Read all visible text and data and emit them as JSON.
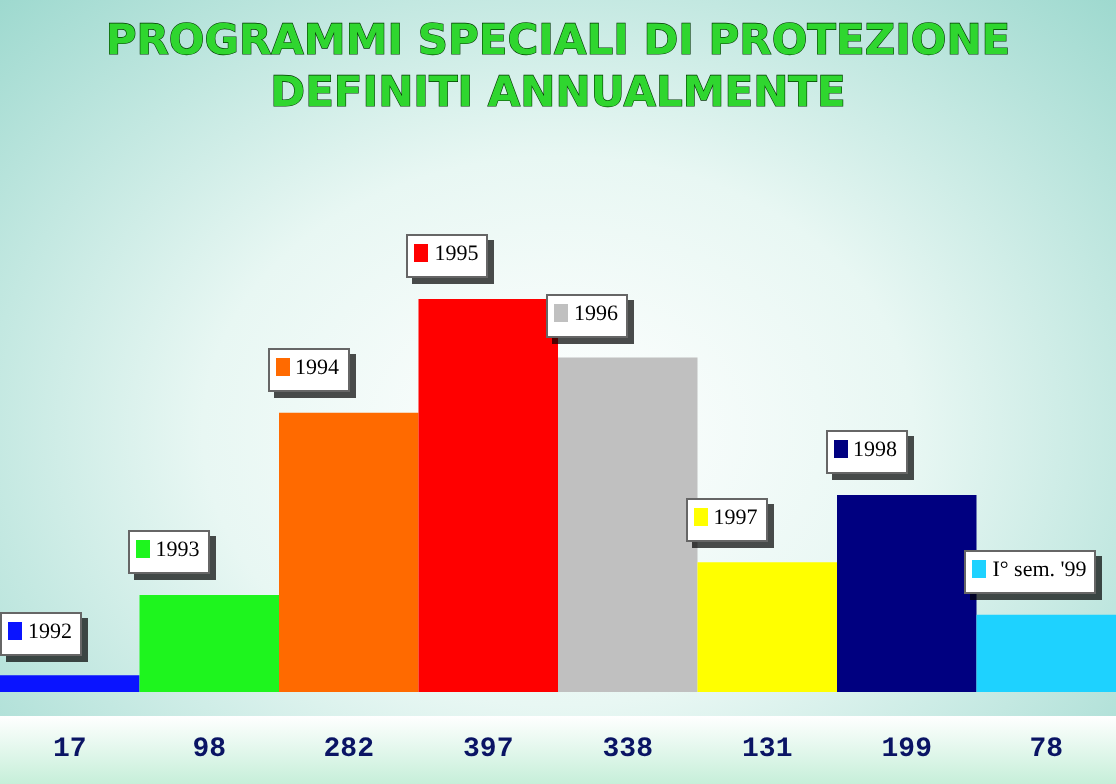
{
  "chart_data": {
    "type": "bar",
    "title": "PROGRAMMI SPECIALI DI PROTEZIONE\nDEFINITI ANNUALMENTE",
    "categories": [
      "1992",
      "1993",
      "1994",
      "1995",
      "1996",
      "1997",
      "1998",
      "I° sem. '99"
    ],
    "values": [
      17,
      98,
      282,
      397,
      338,
      131,
      199,
      78
    ],
    "colors": [
      "#0a14ff",
      "#1ef51e",
      "#ff6a00",
      "#ff0000",
      "#c0c0c0",
      "#ffff00",
      "#000080",
      "#1ed2ff"
    ],
    "data_labels": true,
    "grid": false
  }
}
